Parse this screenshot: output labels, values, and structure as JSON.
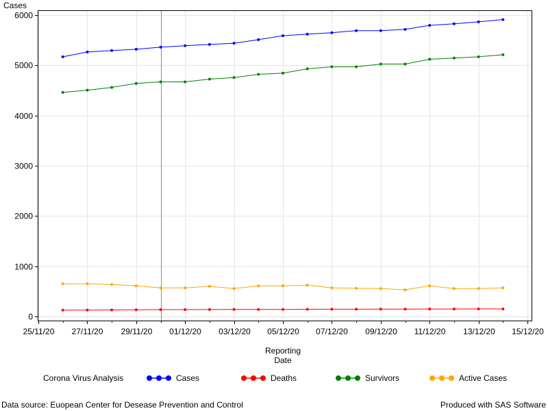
{
  "chart_data": {
    "type": "line",
    "ylabel": "Cases",
    "xlabel_lines": [
      "Reporting",
      "Date"
    ],
    "x_ticks": [
      "25/11/20",
      "27/11/20",
      "29/11/20",
      "01/12/20",
      "03/12/20",
      "05/12/20",
      "07/12/20",
      "09/12/20",
      "11/12/20",
      "13/12/20",
      "15/12/20"
    ],
    "x": [
      "26/11/20",
      "27/11/20",
      "28/11/20",
      "29/11/20",
      "30/11/20",
      "01/12/20",
      "02/12/20",
      "03/12/20",
      "04/12/20",
      "05/12/20",
      "06/12/20",
      "07/12/20",
      "08/12/20",
      "09/12/20",
      "10/12/20",
      "11/12/20",
      "12/12/20",
      "13/12/20",
      "14/12/20"
    ],
    "xlim": [
      "25/11/20",
      "15/12/20"
    ],
    "ylim": [
      0,
      6000
    ],
    "y_ticks": [
      0,
      1000,
      2000,
      3000,
      4000,
      5000,
      6000
    ],
    "reference_line_x": "30/11/20",
    "grid": true,
    "legend_title": "Corona Virus Analysis",
    "legend_position": "bottom",
    "series": [
      {
        "name": "Cases",
        "color": "#0000ff",
        "values": [
          5170,
          5265,
          5295,
          5320,
          5360,
          5390,
          5415,
          5440,
          5510,
          5590,
          5620,
          5650,
          5690,
          5690,
          5715,
          5795,
          5825,
          5865,
          5910
        ]
      },
      {
        "name": "Deaths",
        "color": "#ff0000",
        "values": [
          125,
          128,
          130,
          132,
          136,
          136,
          138,
          140,
          141,
          141,
          143,
          144,
          145,
          146,
          146,
          148,
          149,
          150,
          150
        ]
      },
      {
        "name": "Survivors",
        "color": "#008000",
        "values": [
          4460,
          4505,
          4560,
          4640,
          4670,
          4670,
          4725,
          4755,
          4820,
          4845,
          4930,
          4970,
          4970,
          5025,
          5025,
          5120,
          5145,
          5170,
          5210
        ]
      },
      {
        "name": "Active Cases",
        "color": "#ffa500",
        "values": [
          650,
          650,
          635,
          610,
          570,
          570,
          600,
          555,
          610,
          610,
          625,
          570,
          560,
          555,
          530,
          610,
          555,
          555,
          570
        ]
      }
    ]
  },
  "footnotes": {
    "left": "Data source: Euopean Center for Desease Prevention and Control",
    "right": "Produced with SAS Software"
  }
}
